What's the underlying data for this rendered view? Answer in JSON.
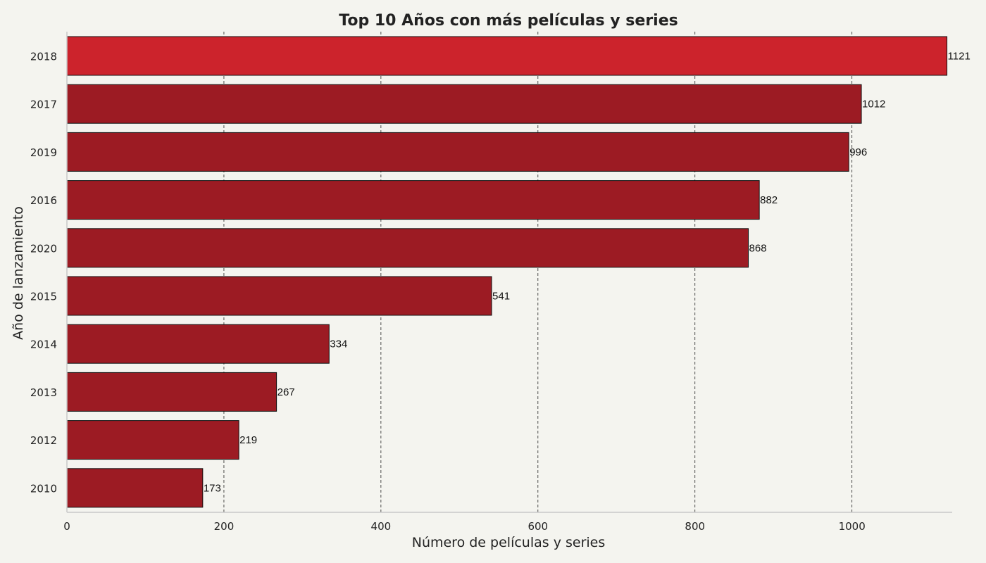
{
  "chart_data": {
    "type": "bar",
    "orientation": "horizontal",
    "title": "Top 10 Años con más películas y series",
    "xlabel": "Número de películas y series",
    "ylabel": "Año de lanzamiento",
    "categories": [
      "2018",
      "2017",
      "2019",
      "2016",
      "2020",
      "2015",
      "2014",
      "2013",
      "2012",
      "2010"
    ],
    "values": [
      1121,
      1012,
      996,
      882,
      868,
      541,
      334,
      267,
      219,
      173
    ],
    "data_labels": [
      "1121",
      "1012",
      "996",
      "882",
      "868",
      "541",
      "334",
      "267",
      "219",
      "173"
    ],
    "xlim": [
      0,
      1125
    ],
    "xticks": [
      0,
      200,
      400,
      600,
      800,
      1000
    ],
    "xtick_labels": [
      "0",
      "200",
      "400",
      "600",
      "800",
      "1000"
    ],
    "grid": "vertical dashed",
    "colors": {
      "highlight": "#cc232c",
      "bar": "#9c1b23",
      "background": "#f4f4ef",
      "edge": "#111111"
    }
  }
}
